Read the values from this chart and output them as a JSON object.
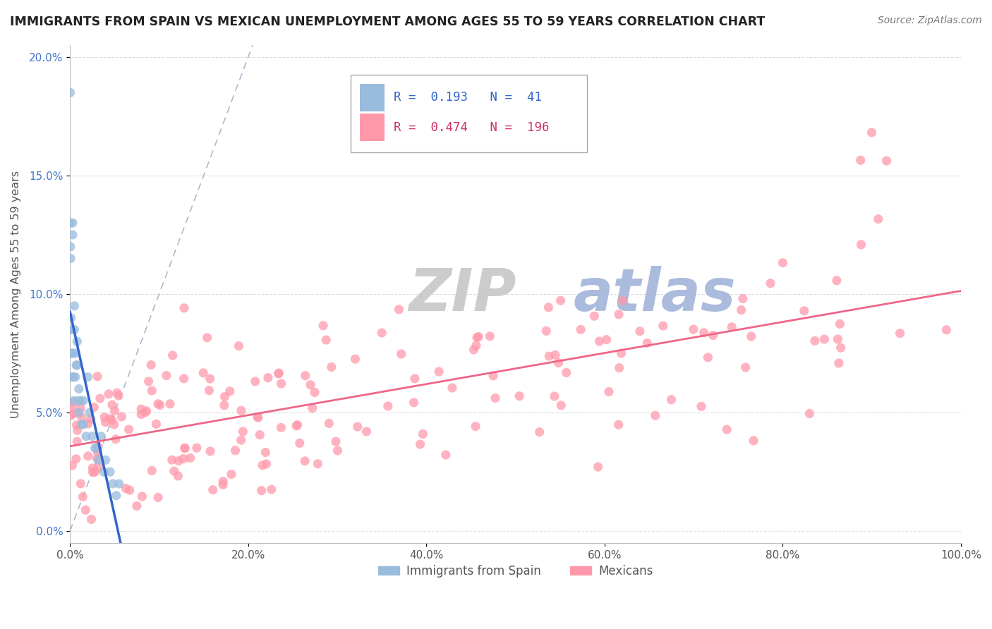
{
  "title": "IMMIGRANTS FROM SPAIN VS MEXICAN UNEMPLOYMENT AMONG AGES 55 TO 59 YEARS CORRELATION CHART",
  "source": "Source: ZipAtlas.com",
  "ylabel_label": "Unemployment Among Ages 55 to 59 years",
  "legend_labels": [
    "Immigrants from Spain",
    "Mexicans"
  ],
  "R_spain": 0.193,
  "N_spain": 41,
  "R_mexico": 0.474,
  "N_mexico": 196,
  "color_spain": "#99BBDD",
  "color_mexico": "#FF99AA",
  "trendline_spain": "#3366CC",
  "trendline_mexico": "#EE6688",
  "diagonal_color": "#AABBCC",
  "watermark_zip_color": "#CCCCCC",
  "watermark_atlas_color": "#AABBDD",
  "background_color": "#FFFFFF",
  "xlim": [
    0.0,
    1.0
  ],
  "ylim": [
    -0.005,
    0.205
  ]
}
